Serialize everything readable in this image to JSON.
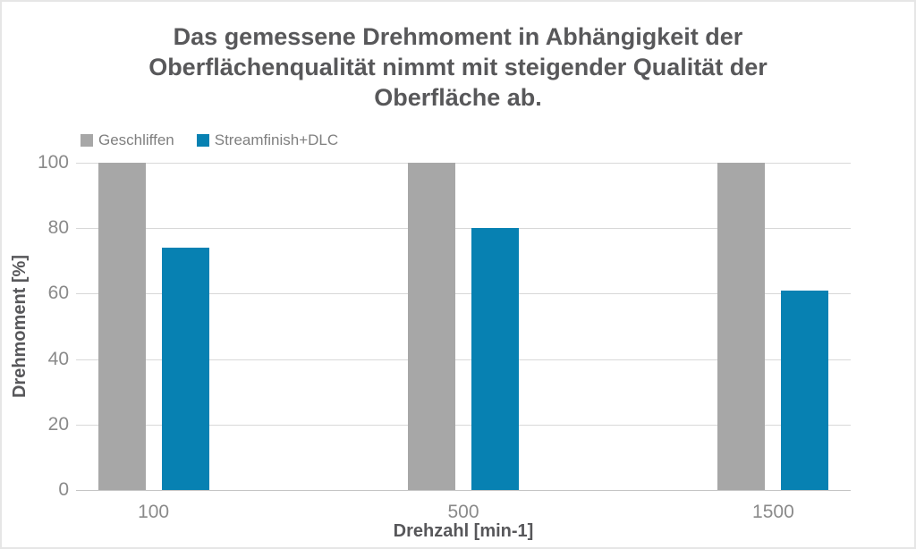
{
  "chart_data": {
    "type": "bar",
    "title": "Das gemessene Drehmoment in Abhängigkeit der Oberflächenqualität nimmt mit steigender Qualität der Oberfläche ab.",
    "title_lines": [
      "Das gemessene Drehmoment in Abhängigkeit der",
      "Oberflächenqualität nimmt mit steigender Qualität der",
      "Oberfläche ab."
    ],
    "categories": [
      "100",
      "500",
      "1500"
    ],
    "series": [
      {
        "name": "Geschliffen",
        "color": "#a7a7a7",
        "values": [
          100,
          100,
          100
        ]
      },
      {
        "name": "Streamfinish+DLC",
        "color": "#0781b2",
        "values": [
          74,
          80,
          61
        ]
      }
    ],
    "xlabel": "Drehzahl [min-1]",
    "ylabel": "Drehmoment [%]",
    "ylim": [
      0,
      100
    ],
    "yticks": [
      0,
      20,
      40,
      60,
      80,
      100
    ],
    "grid": true,
    "legend_position": "top-left",
    "colors": {
      "title_text": "#58585a",
      "axis_title_text": "#57575a",
      "tick_text": "#8a8a8a",
      "legend_text": "#7f7f7f",
      "gridline": "#d8d8d8",
      "axis_line": "#c4c4c4",
      "background": "#ffffff"
    }
  }
}
